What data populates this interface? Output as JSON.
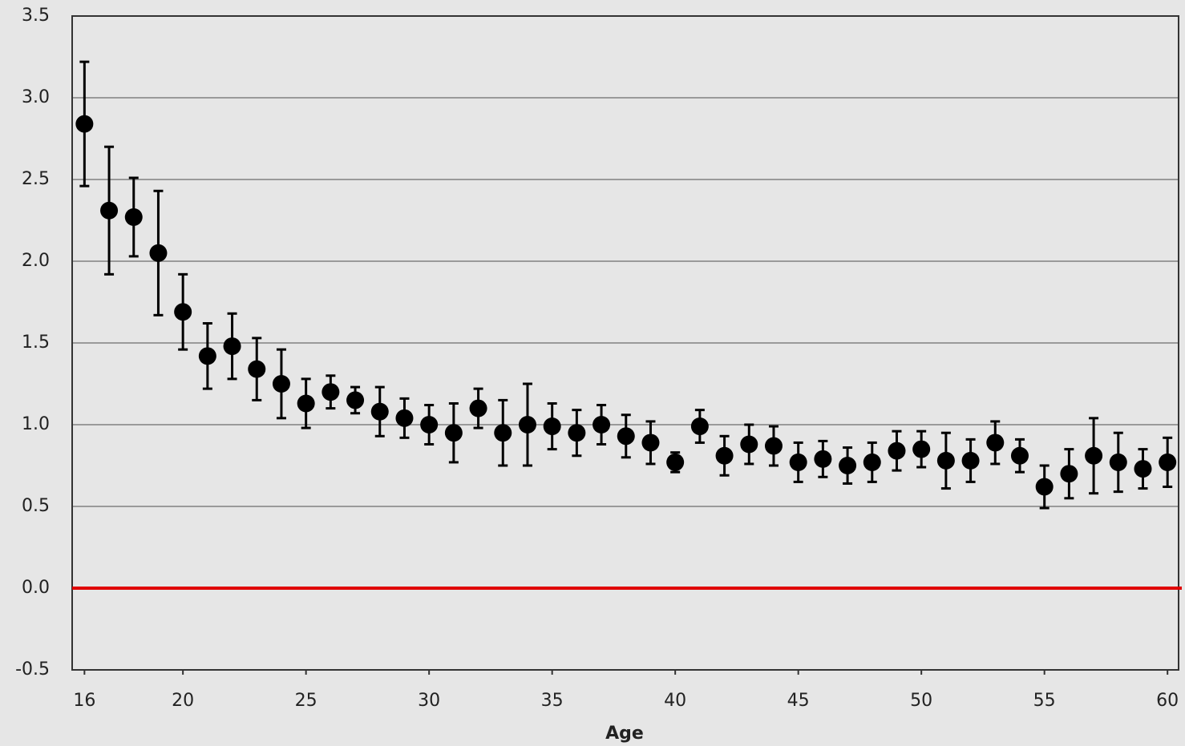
{
  "chart_data": {
    "type": "scatter",
    "x_label": "Age",
    "x": [
      16,
      17,
      18,
      19,
      20,
      21,
      22,
      23,
      24,
      25,
      26,
      27,
      28,
      29,
      30,
      31,
      32,
      33,
      34,
      35,
      36,
      37,
      38,
      39,
      40,
      41,
      42,
      43,
      44,
      45,
      46,
      47,
      48,
      49,
      50,
      51,
      52,
      53,
      54,
      55,
      56,
      57,
      58,
      59,
      60
    ],
    "series": [
      {
        "color": "#000000",
        "values": [
          2.84,
          2.31,
          2.27,
          2.05,
          1.69,
          1.42,
          1.48,
          1.34,
          1.25,
          1.13,
          1.2,
          1.15,
          1.08,
          1.04,
          1.0,
          0.95,
          1.1,
          0.95,
          1.0,
          0.99,
          0.95,
          1.0,
          0.93,
          0.89,
          0.77,
          0.99,
          0.81,
          0.88,
          0.87,
          0.77,
          0.79,
          0.75,
          0.77,
          0.84,
          0.85,
          0.78,
          0.78,
          0.89,
          0.81,
          0.62,
          0.7,
          0.81,
          0.77,
          0.73,
          0.77
        ],
        "errors": [
          0.38,
          0.39,
          0.24,
          0.38,
          0.23,
          0.2,
          0.2,
          0.19,
          0.21,
          0.15,
          0.1,
          0.08,
          0.15,
          0.12,
          0.12,
          0.18,
          0.12,
          0.2,
          0.25,
          0.14,
          0.14,
          0.12,
          0.13,
          0.13,
          0.06,
          0.1,
          0.12,
          0.12,
          0.12,
          0.12,
          0.11,
          0.11,
          0.12,
          0.12,
          0.11,
          0.17,
          0.13,
          0.13,
          0.1,
          0.13,
          0.15,
          0.23,
          0.18,
          0.12,
          0.15
        ]
      }
    ],
    "xlim": [
      15.5,
      60.45
    ],
    "xticks": [
      16,
      20,
      25,
      30,
      35,
      40,
      45,
      50,
      55,
      60
    ],
    "ylim": [
      -0.5,
      3.5
    ],
    "yticks": [
      -0.5,
      {
        "value": 0,
        "label": "0.0"
      },
      0.5,
      {
        "value": 1,
        "label": "1.0"
      },
      1.5,
      {
        "value": 2,
        "label": "2.0"
      },
      2.5,
      {
        "value": 3,
        "label": "3.0"
      },
      3.5
    ],
    "grid": true,
    "reference_line": {
      "value": 0,
      "color": "#e00000"
    }
  }
}
